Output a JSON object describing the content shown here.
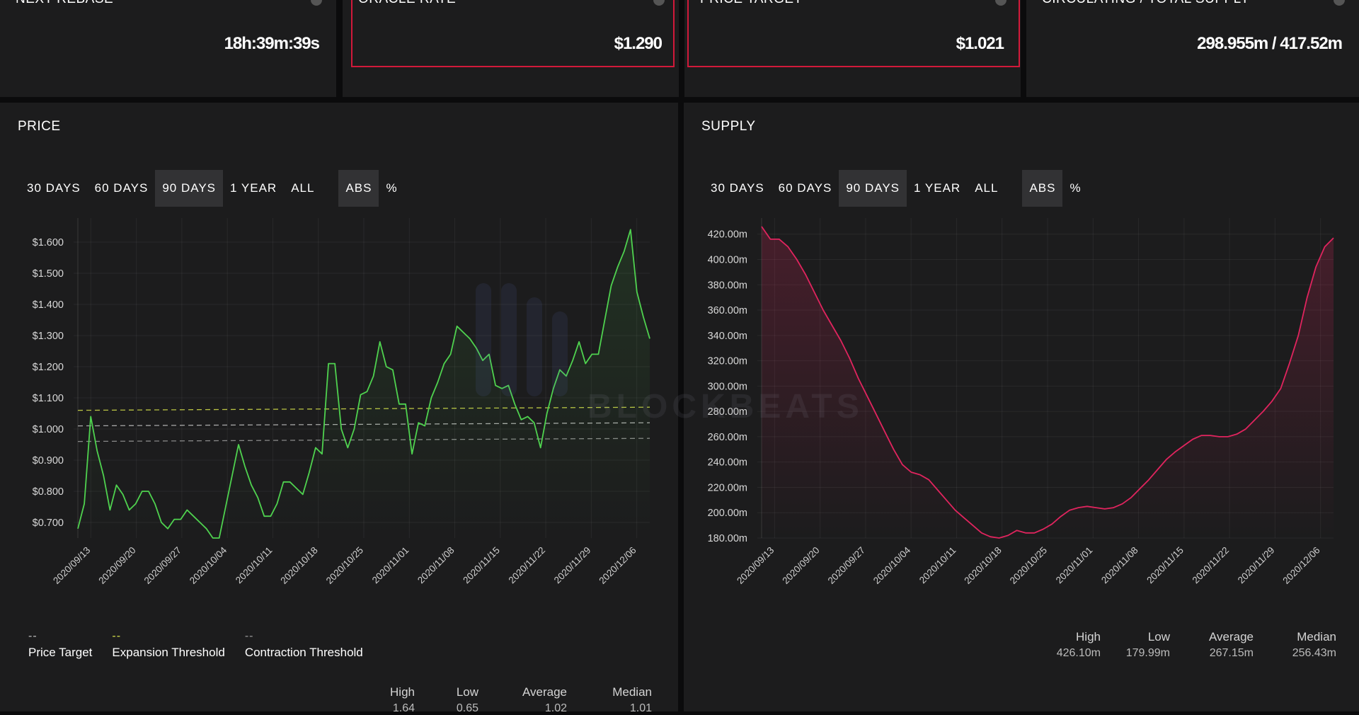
{
  "stats_cards": [
    {
      "label": "NEXT REBASE",
      "value": "18h:39m:39s"
    },
    {
      "label": "ORACLE RATE",
      "value": "$1.290"
    },
    {
      "label": "PRICE TARGET",
      "value": "$1.021"
    },
    {
      "label": "CIRCULATING / TOTAL SUPPLY",
      "value": "298.955m / 417.52m"
    }
  ],
  "price_panel": {
    "title": "PRICE",
    "range_buttons": [
      "30 DAYS",
      "60 DAYS",
      "90 DAYS",
      "1 YEAR",
      "ALL"
    ],
    "active_range": "90 DAYS",
    "unit_buttons": [
      "ABS",
      "%"
    ],
    "active_unit": "ABS",
    "legend": [
      {
        "swatch": "--",
        "label": "Price Target",
        "color": "#bfbfbf"
      },
      {
        "swatch": "--",
        "label": "Expansion Threshold",
        "color": "#d6e04a"
      },
      {
        "swatch": "--",
        "label": "Contraction Threshold",
        "color": "#9a9a9a"
      }
    ],
    "summary": {
      "labels": [
        "High",
        "Low",
        "Average",
        "Median"
      ],
      "values": [
        "1.64",
        "0.65",
        "1.02",
        "1.01"
      ]
    }
  },
  "supply_panel": {
    "title": "SUPPLY",
    "range_buttons": [
      "30 DAYS",
      "60 DAYS",
      "90 DAYS",
      "1 YEAR",
      "ALL"
    ],
    "active_range": "90 DAYS",
    "unit_buttons": [
      "ABS",
      "%"
    ],
    "active_unit": "ABS",
    "summary": {
      "labels": [
        "High",
        "Low",
        "Average",
        "Median"
      ],
      "values": [
        "426.10m",
        "179.99m",
        "267.15m",
        "256.43m"
      ]
    }
  },
  "watermark": {
    "text": "BLOCKBEATS"
  },
  "chart_data": [
    {
      "type": "line",
      "title": "PRICE",
      "xlabel": "",
      "ylabel": "",
      "x_ticks": [
        "2020/09/13",
        "2020/09/20",
        "2020/09/27",
        "2020/10/04",
        "2020/10/11",
        "2020/10/18",
        "2020/10/25",
        "2020/11/01",
        "2020/11/08",
        "2020/11/15",
        "2020/11/22",
        "2020/11/29",
        "2020/12/06"
      ],
      "y_ticks": [
        "$0.700",
        "$0.800",
        "$0.900",
        "$1.000",
        "$1.100",
        "$1.200",
        "$1.300",
        "$1.400",
        "$1.500",
        "$1.600"
      ],
      "ylim": [
        0.65,
        1.65
      ],
      "grid": true,
      "legend_position": "bottom-left",
      "series": [
        {
          "name": "Price",
          "color": "#4fd24f",
          "x_start": "2020/09/11",
          "x_end": "2020/12/08",
          "values": [
            0.68,
            0.76,
            1.04,
            0.93,
            0.85,
            0.74,
            0.82,
            0.79,
            0.74,
            0.76,
            0.8,
            0.8,
            0.76,
            0.7,
            0.68,
            0.71,
            0.71,
            0.74,
            0.72,
            0.7,
            0.68,
            0.65,
            0.65,
            0.75,
            0.85,
            0.95,
            0.88,
            0.82,
            0.78,
            0.72,
            0.72,
            0.76,
            0.83,
            0.83,
            0.81,
            0.79,
            0.86,
            0.94,
            0.92,
            1.21,
            1.21,
            1.0,
            0.94,
            1.0,
            1.11,
            1.12,
            1.17,
            1.28,
            1.2,
            1.19,
            1.08,
            1.08,
            0.92,
            1.02,
            1.01,
            1.1,
            1.15,
            1.21,
            1.24,
            1.33,
            1.31,
            1.29,
            1.26,
            1.22,
            1.24,
            1.14,
            1.13,
            1.14,
            1.08,
            1.03,
            1.04,
            1.02,
            0.94,
            1.05,
            1.13,
            1.19,
            1.17,
            1.22,
            1.28,
            1.21,
            1.24,
            1.24,
            1.35,
            1.46,
            1.52,
            1.57,
            1.64,
            1.44,
            1.36,
            1.29
          ]
        },
        {
          "name": "Price Target",
          "color": "#bfbfbf",
          "values": [
            1.01,
            1.02
          ]
        },
        {
          "name": "Expansion Threshold",
          "color": "#d6e04a",
          "values": [
            1.06,
            1.07
          ]
        },
        {
          "name": "Contraction Threshold",
          "color": "#9a9a9a",
          "values": [
            0.96,
            0.97
          ]
        }
      ]
    },
    {
      "type": "area",
      "title": "SUPPLY",
      "xlabel": "",
      "ylabel": "",
      "x_ticks": [
        "2020/09/13",
        "2020/09/20",
        "2020/09/27",
        "2020/10/04",
        "2020/10/11",
        "2020/10/18",
        "2020/10/25",
        "2020/11/01",
        "2020/11/08",
        "2020/11/15",
        "2020/11/22",
        "2020/11/29",
        "2020/12/06"
      ],
      "y_ticks": [
        "180.00m",
        "200.00m",
        "220.00m",
        "240.00m",
        "260.00m",
        "280.00m",
        "300.00m",
        "320.00m",
        "340.00m",
        "360.00m",
        "380.00m",
        "400.00m",
        "420.00m"
      ],
      "ylim": [
        180,
        426
      ],
      "grid": true,
      "series": [
        {
          "name": "Supply",
          "color": "#e0245e",
          "x_start": "2020/09/11",
          "x_end": "2020/12/08",
          "values": [
            426,
            416,
            416,
            410,
            400,
            388,
            374,
            360,
            348,
            336,
            322,
            306,
            292,
            278,
            264,
            250,
            238,
            232,
            230,
            226,
            218,
            210,
            202,
            196,
            190,
            184,
            181,
            180,
            182,
            186,
            184,
            184,
            187,
            191,
            197,
            202,
            204,
            205,
            204,
            203,
            204,
            207,
            212,
            219,
            226,
            234,
            242,
            248,
            253,
            258,
            261,
            261,
            260,
            260,
            262,
            266,
            273,
            280,
            288,
            298,
            318,
            340,
            370,
            394,
            410,
            417
          ]
        }
      ]
    }
  ]
}
